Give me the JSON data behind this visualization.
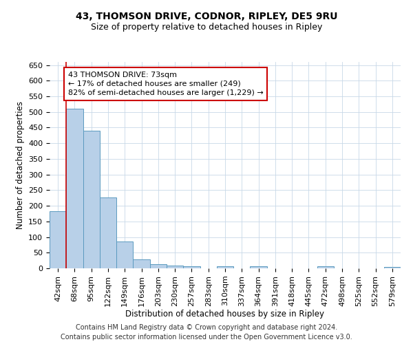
{
  "title": "43, THOMSON DRIVE, CODNOR, RIPLEY, DE5 9RU",
  "subtitle": "Size of property relative to detached houses in Ripley",
  "xlabel": "Distribution of detached houses by size in Ripley",
  "ylabel": "Number of detached properties",
  "categories": [
    "42sqm",
    "68sqm",
    "95sqm",
    "122sqm",
    "149sqm",
    "176sqm",
    "203sqm",
    "230sqm",
    "257sqm",
    "283sqm",
    "310sqm",
    "337sqm",
    "364sqm",
    "391sqm",
    "418sqm",
    "445sqm",
    "472sqm",
    "498sqm",
    "525sqm",
    "552sqm",
    "579sqm"
  ],
  "values": [
    182,
    510,
    441,
    226,
    85,
    28,
    14,
    9,
    6,
    0,
    6,
    0,
    7,
    0,
    0,
    0,
    6,
    0,
    0,
    0,
    4
  ],
  "bar_color": "#b8d0e8",
  "bar_edge_color": "#5a9abf",
  "vline_color": "#cc0000",
  "annotation_line1": "43 THOMSON DRIVE: 73sqm",
  "annotation_line2": "← 17% of detached houses are smaller (249)",
  "annotation_line3": "82% of semi-detached houses are larger (1,229) →",
  "annotation_box_color": "#cc0000",
  "ylim": [
    0,
    660
  ],
  "yticks": [
    0,
    50,
    100,
    150,
    200,
    250,
    300,
    350,
    400,
    450,
    500,
    550,
    600,
    650
  ],
  "footer": "Contains HM Land Registry data © Crown copyright and database right 2024.\nContains public sector information licensed under the Open Government Licence v3.0.",
  "bg_color": "#ffffff",
  "grid_color": "#c8d8e8",
  "title_fontsize": 10,
  "subtitle_fontsize": 9,
  "axis_label_fontsize": 8.5,
  "tick_fontsize": 8,
  "annotation_fontsize": 8,
  "footer_fontsize": 7
}
